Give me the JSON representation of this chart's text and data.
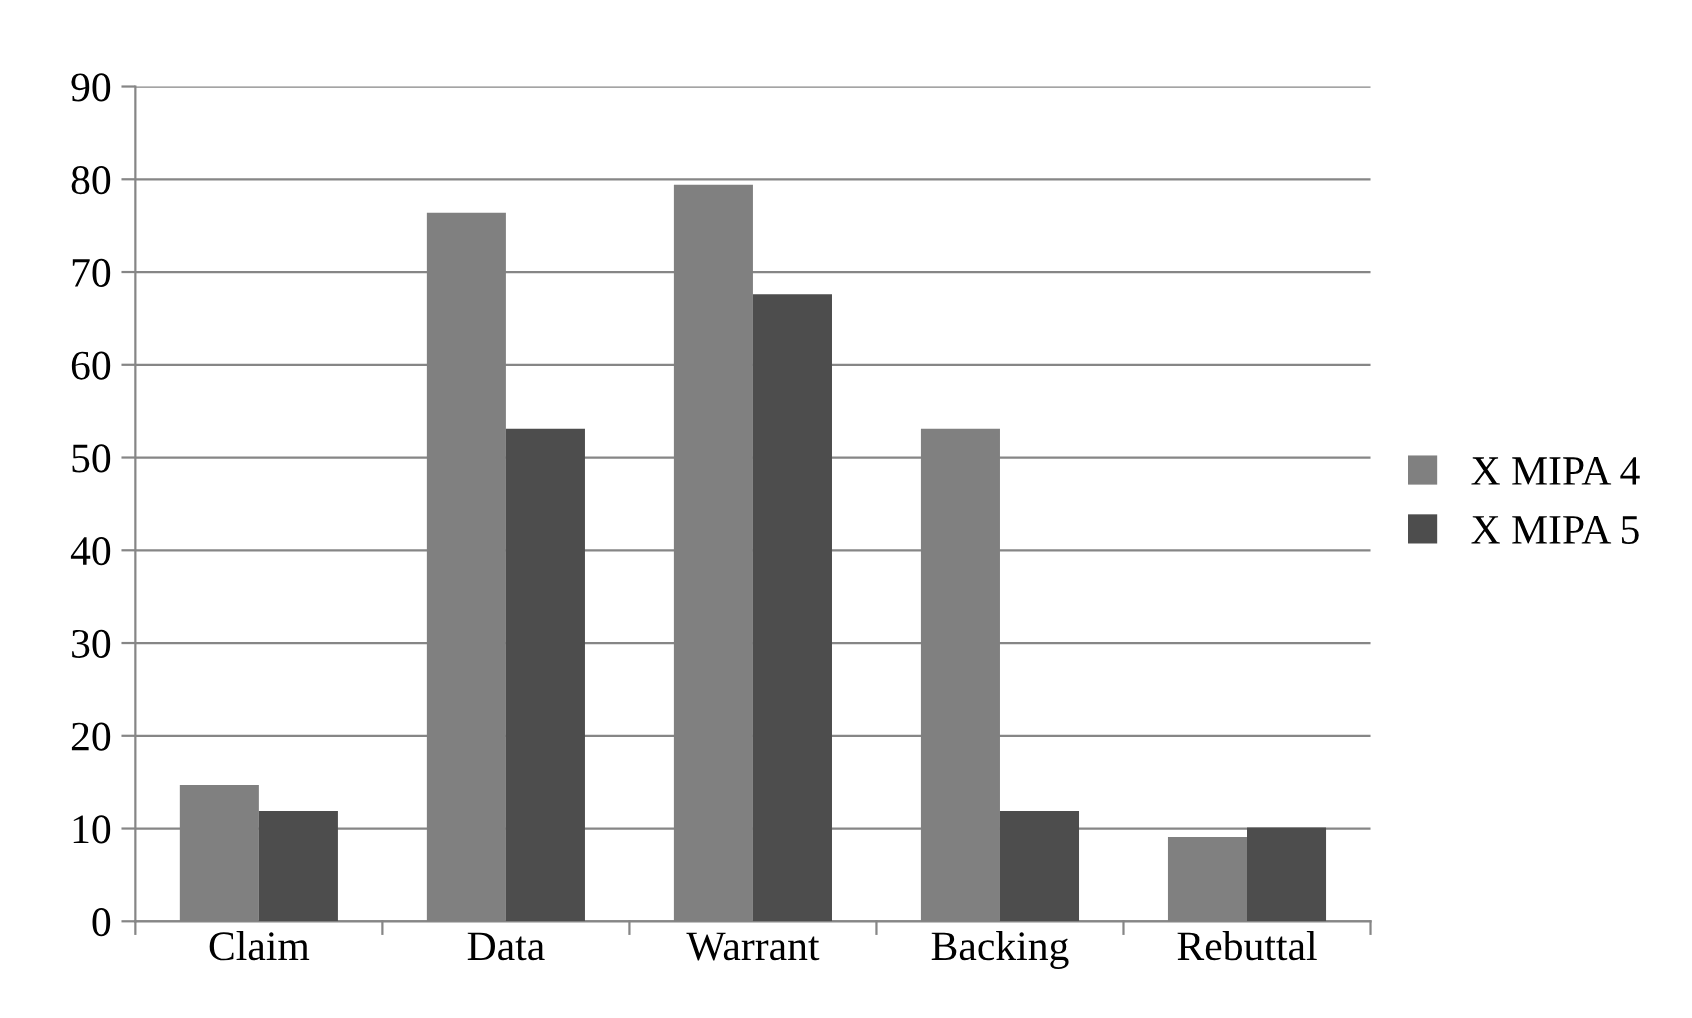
{
  "chart_data": {
    "type": "bar",
    "categories": [
      "Claim",
      "Data",
      "Warrant",
      "Backing",
      "Rebuttal"
    ],
    "series": [
      {
        "name": "X MIPA 4",
        "color": "#808080",
        "values": [
          14.7,
          76.4,
          79.4,
          53.1,
          9.1
        ]
      },
      {
        "name": "X MIPA 5",
        "color": "#4d4d4d",
        "values": [
          11.9,
          53.1,
          67.6,
          11.9,
          10.1
        ]
      }
    ],
    "ylim": [
      0,
      90
    ],
    "yticks": [
      0,
      10,
      20,
      30,
      40,
      50,
      60,
      70,
      80,
      90
    ],
    "grid": "y",
    "legend": "right"
  }
}
